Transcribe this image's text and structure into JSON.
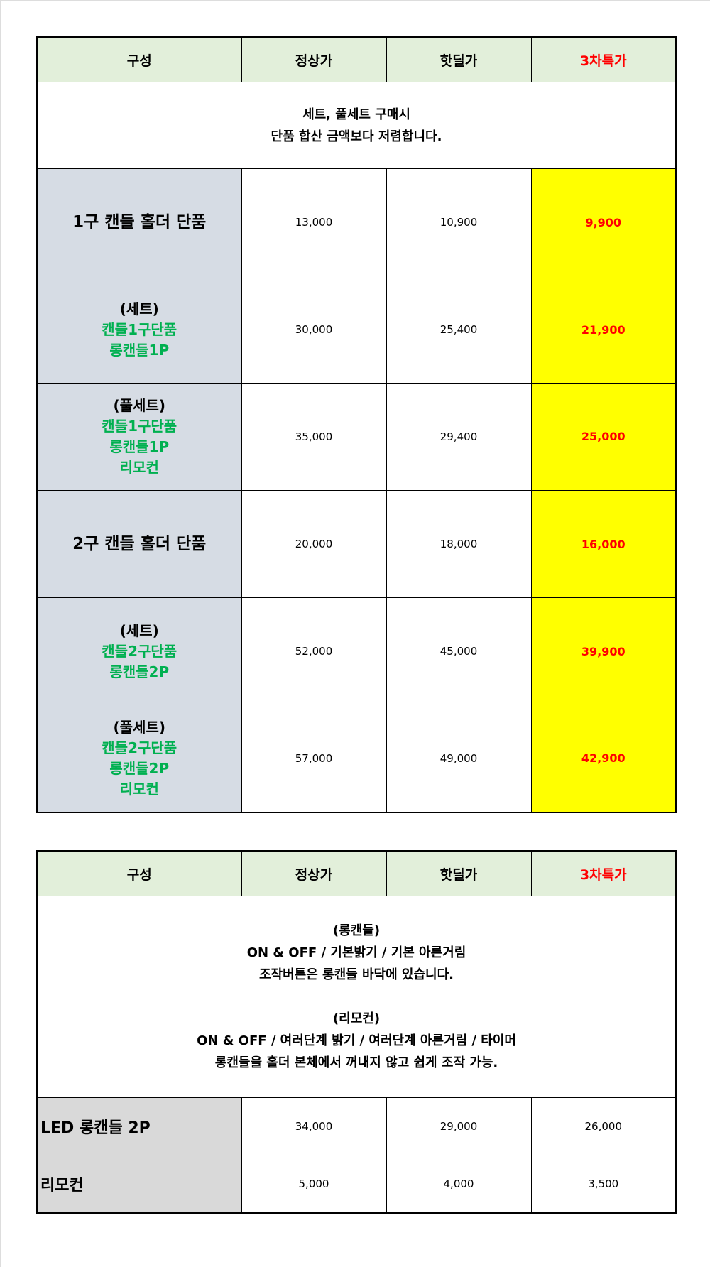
{
  "headers": [
    "구성",
    "정상가",
    "핫딜가",
    "3차특가"
  ],
  "table1": {
    "note": [
      "세트, 풀세트 구매시",
      "단품 합산 금액보다 저렴합니다."
    ],
    "rows": [
      {
        "title": "1구 캔들 홀더 단품",
        "items": [],
        "regular": "13,000",
        "hotdeal": "10,900",
        "special": "9,900"
      },
      {
        "title": "(세트)",
        "items": [
          "캔들1구단품",
          "롱캔들1P"
        ],
        "regular": "30,000",
        "hotdeal": "25,400",
        "special": "21,900"
      },
      {
        "title": "(풀세트)",
        "items": [
          "캔들1구단품",
          "롱캔들1P",
          "리모컨"
        ],
        "regular": "35,000",
        "hotdeal": "29,400",
        "special": "25,000"
      },
      {
        "title": "2구 캔들 홀더 단품",
        "items": [],
        "regular": "20,000",
        "hotdeal": "18,000",
        "special": "16,000"
      },
      {
        "title": "(세트)",
        "items": [
          "캔들2구단품",
          "롱캔들2P"
        ],
        "regular": "52,000",
        "hotdeal": "45,000",
        "special": "39,900"
      },
      {
        "title": "(풀세트)",
        "items": [
          "캔들2구단품",
          "롱캔들2P",
          "리모컨"
        ],
        "regular": "57,000",
        "hotdeal": "49,000",
        "special": "42,900"
      }
    ]
  },
  "table2": {
    "note": [
      "(롱캔들)",
      "ON & OFF / 기본밝기 / 기본 아른거림",
      "조작버튼은 롱캔들 바닥에 있습니다.",
      "",
      "(리모컨)",
      "ON & OFF / 여러단계 밝기 / 여러단계 아른거림 / 타이머",
      "롱캔들을 홀더 본체에서 꺼내지 않고 쉽게 조작 가능."
    ],
    "rows": [
      {
        "title": "LED 롱캔들 2P",
        "regular": "34,000",
        "hotdeal": "29,000",
        "special": "26,000"
      },
      {
        "title": "리모컨",
        "regular": "5,000",
        "hotdeal": "4,000",
        "special": "3,500"
      }
    ]
  },
  "colors": {
    "header_bg": "#e2efda",
    "label_bg": "#d6dce4",
    "label2_bg": "#d9d9d9",
    "special_bg": "#ffff00",
    "red": "#ff0000",
    "green": "#00b050"
  }
}
